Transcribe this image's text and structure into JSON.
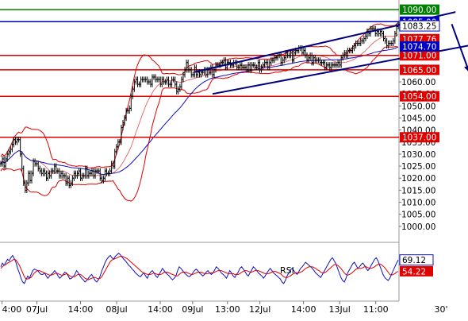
{
  "chart_data": [
    {
      "type": "candlestick",
      "panel": "price",
      "xlabel": "",
      "ylabel": "",
      "ylim": [
        995,
        1094
      ],
      "y_ticks": [
        1000,
        1005,
        1010,
        1015,
        1020,
        1025,
        1030,
        1035,
        1040,
        1045,
        1050,
        1055,
        1060
      ],
      "y_tick_labels": [
        "1000.00",
        "1005.00",
        "1010.00",
        "1015.00",
        "1020.00",
        "1025.00",
        "1030.00",
        "1035.00",
        "1040.00",
        "1045.00",
        "1050.00",
        "1055.00",
        "1060.00"
      ],
      "x_tick_labels": [
        "4:00",
        "07Jul",
        "14:00",
        "08Jul",
        "14:00",
        "09Jul",
        "13:00",
        "12Jul",
        "14:00",
        "13Jul",
        "11:00",
        "30'"
      ],
      "x_tick_bars": [
        1,
        29,
        64,
        93,
        128,
        154,
        182,
        208,
        243,
        272,
        301,
        361
      ],
      "bar_count": 320,
      "series": [
        {
          "values": [
            1026,
            1028,
            1025,
            1028,
            1030,
            1031,
            1032,
            1034,
            1036,
            1035,
            1036,
            1036,
            1030,
            1024,
            1018,
            1015,
            1018,
            1022,
            1019,
            1022,
            1027,
            1026,
            1026,
            1024,
            1023,
            1022,
            1023,
            1022,
            1020,
            1022,
            1021,
            1023,
            1023,
            1025,
            1023,
            1023,
            1021,
            1022,
            1021,
            1021,
            1018,
            1020,
            1017,
            1018,
            1020,
            1022,
            1021,
            1022,
            1023,
            1020,
            1021,
            1021,
            1024,
            1021,
            1022,
            1022,
            1023,
            1021,
            1023,
            1023,
            1023,
            1020,
            1019,
            1020,
            1023,
            1022,
            1022,
            1023,
            1026,
            1025,
            1031,
            1033,
            1035,
            1035,
            1041,
            1043,
            1045,
            1048,
            1048,
            1049,
            1054,
            1057,
            1060,
            1061,
            1059,
            1059,
            1061,
            1061,
            1061,
            1061,
            1060,
            1060,
            1059,
            1062,
            1062,
            1061,
            1061,
            1061,
            1059,
            1061,
            1060,
            1060,
            1061,
            1059,
            1059,
            1061,
            1061,
            1059,
            1056,
            1057,
            1058,
            1061,
            1063,
            1065,
            1068,
            1065,
            1065,
            1063,
            1063,
            1066,
            1063,
            1064,
            1063,
            1064,
            1064,
            1065,
            1063,
            1065,
            1064,
            1066,
            1063,
            1065,
            1067,
            1067,
            1067,
            1068,
            1068,
            1069,
            1066,
            1068,
            1068,
            1067,
            1067,
            1068,
            1068,
            1066,
            1066,
            1067,
            1066,
            1066,
            1066,
            1065,
            1067,
            1065,
            1067,
            1067,
            1066,
            1066,
            1068,
            1065,
            1066,
            1067,
            1068,
            1068,
            1066,
            1068,
            1069,
            1069,
            1070,
            1070,
            1071,
            1071,
            1068,
            1069,
            1070,
            1072,
            1071,
            1071,
            1072,
            1069,
            1072,
            1073,
            1073,
            1074,
            1074,
            1072,
            1073,
            1071,
            1069,
            1070,
            1071,
            1068,
            1070,
            1069,
            1069,
            1069,
            1068,
            1068,
            1068,
            1066,
            1067,
            1067,
            1066,
            1067,
            1067,
            1067,
            1067,
            1068,
            1067,
            1070,
            1071,
            1072,
            1071,
            1073,
            1073,
            1073,
            1074,
            1075,
            1076,
            1076,
            1076,
            1077,
            1077,
            1078,
            1079,
            1081,
            1080,
            1082,
            1082,
            1082,
            1080,
            1081,
            1080,
            1081,
            1080,
            1078,
            1077,
            1075,
            1076,
            1076,
            1076,
            1077,
            1080,
            1083,
            1084
          ]
        }
      ],
      "indicators": [
        {
          "type": "bollinger-upper",
          "color": "#e00000"
        },
        {
          "type": "bollinger-lower",
          "color": "#e00000"
        },
        {
          "type": "moving-average",
          "color": "#1010c0"
        }
      ],
      "trend_channel": {
        "upper": [
          [
            155,
            1064
          ],
          [
            365,
            1089
          ]
        ],
        "lower": [
          [
            170,
            1055
          ],
          [
            385,
            1076
          ]
        ],
        "color": "#000080"
      },
      "arrow": {
        "from": [
          362,
          1084
        ],
        "to": [
          376,
          1064
        ],
        "color": "#000080"
      },
      "horizontal_levels": [
        {
          "value": 1090.0,
          "label": "1090.00",
          "line_color": "#008000",
          "label_bg": "#008000"
        },
        {
          "value": 1085.0,
          "label": "1085.00",
          "line_color": "#0000c0",
          "label_bg": "#0000c0",
          "label_covered": true
        },
        {
          "value": 1071.0,
          "label": "1071.00",
          "line_color": "#e00000",
          "label_bg": "#e00000"
        },
        {
          "value": 1065.0,
          "label": "1065.00",
          "line_color": "#e00000",
          "label_bg": "#e00000"
        },
        {
          "value": 1054.0,
          "label": "1054.00",
          "line_color": "#e00000",
          "label_bg": "#e00000"
        },
        {
          "value": 1037.0,
          "label": "1037.00",
          "line_color": "#e00000",
          "label_bg": "#e00000"
        }
      ],
      "value_tags": [
        {
          "label": "1083.25",
          "value": 1083.25,
          "bg": "#ffffff",
          "fg": "#000000",
          "border": "#0000c0"
        },
        {
          "label": "1077.76",
          "value": 1077.76,
          "bg": "#e00000",
          "fg": "#ffffff"
        },
        {
          "label": "1074.70",
          "value": 1074.7,
          "bg": "#0000c0",
          "fg": "#ffffff"
        }
      ],
      "grid": false
    },
    {
      "type": "line",
      "panel": "indicator",
      "annotations": [
        "RSI"
      ],
      "ylim": [
        20,
        85
      ],
      "series": [
        {
          "color": "#1010c0",
          "values": [
            60,
            65,
            62,
            66,
            70,
            68,
            72,
            75,
            71,
            66,
            58,
            52,
            45,
            40,
            38,
            43,
            48,
            45,
            50,
            55,
            57,
            56,
            55,
            52,
            50,
            50,
            52,
            48,
            45,
            48,
            50,
            52,
            55,
            52,
            48,
            45,
            47,
            50,
            53,
            52,
            48,
            44,
            45,
            47,
            50,
            55,
            52,
            48,
            45,
            43,
            40,
            42,
            45,
            48,
            50,
            46,
            42,
            40,
            43,
            48,
            55,
            60,
            66,
            70,
            73,
            75,
            72,
            70,
            74,
            76,
            78,
            76,
            73,
            70,
            68,
            65,
            62,
            60,
            57,
            55,
            52,
            50,
            48,
            47,
            50,
            52,
            48,
            45,
            50,
            53,
            55,
            52,
            48,
            46,
            50,
            54,
            58,
            55,
            52,
            50,
            48,
            45,
            43,
            45,
            48,
            55,
            60,
            58,
            55,
            52,
            50,
            48,
            47,
            49,
            52,
            55,
            57,
            55,
            52,
            50,
            48,
            50,
            53,
            55,
            52,
            50,
            52,
            56,
            60,
            58,
            55,
            52,
            50,
            48,
            45,
            50,
            55,
            52,
            48,
            46,
            50,
            53,
            58,
            60,
            57,
            54,
            50,
            48,
            52,
            56,
            60,
            58,
            55,
            52,
            50,
            48,
            45,
            48,
            52,
            55,
            58,
            55,
            52,
            50,
            48,
            46,
            44,
            40,
            38,
            42,
            48,
            52,
            56,
            58,
            55,
            52,
            50,
            54,
            58,
            60,
            63,
            66,
            64,
            62,
            60,
            58,
            55,
            52,
            50,
            48,
            46,
            50,
            54,
            58,
            62,
            66,
            70,
            72,
            68,
            64,
            58,
            52,
            46,
            42,
            40,
            45,
            52,
            56,
            60,
            64,
            66,
            62,
            58,
            60,
            63,
            65,
            62,
            58,
            55,
            58,
            62,
            66,
            70,
            72,
            68,
            62,
            56,
            50,
            46,
            44,
            42,
            45,
            50,
            55,
            60,
            65,
            69
          ]
        },
        {
          "color": "#e00000",
          "values": [
            58,
            60,
            62,
            63,
            65,
            66,
            67,
            69,
            70,
            69,
            66,
            62,
            57,
            52,
            47,
            44,
            44,
            45,
            46,
            49,
            52,
            54,
            55,
            55,
            54,
            53,
            52,
            51,
            50,
            49,
            49,
            50,
            51,
            52,
            51,
            50,
            49,
            49,
            50,
            51,
            50,
            48,
            47,
            47,
            47,
            49,
            50,
            50,
            49,
            47,
            45,
            44,
            43,
            44,
            45,
            46,
            46,
            45,
            44,
            45,
            47,
            51,
            55,
            59,
            63,
            67,
            69,
            70,
            71,
            72,
            73,
            74,
            74,
            73,
            72,
            71,
            69,
            67,
            65,
            63,
            61,
            59,
            57,
            55,
            53,
            52,
            51,
            50,
            50,
            50,
            51,
            52,
            51,
            50,
            50,
            50,
            51,
            53,
            53,
            53,
            52,
            51,
            50,
            49,
            48,
            48,
            50,
            52,
            53,
            53,
            53,
            52,
            51,
            50,
            50,
            51,
            52,
            53,
            53,
            53,
            52,
            51,
            51,
            51,
            52,
            52,
            52,
            53,
            54,
            55,
            55,
            55,
            54,
            53,
            52,
            51,
            51,
            51,
            51,
            50,
            50,
            50,
            51,
            53,
            54,
            55,
            55,
            54,
            53,
            53,
            54,
            55,
            55,
            55,
            54,
            53,
            52,
            51,
            51,
            51,
            52,
            53,
            54,
            54,
            53,
            52,
            51,
            49,
            47,
            46,
            46,
            47,
            48,
            50,
            51,
            52,
            52,
            52,
            53,
            54,
            56,
            58,
            59,
            60,
            60,
            60,
            59,
            58,
            56,
            55,
            53,
            52,
            52,
            53,
            55,
            57,
            59,
            61,
            63,
            63,
            62,
            60,
            58,
            55,
            52,
            50,
            49,
            50,
            51,
            53,
            55,
            57,
            58,
            58,
            58,
            59,
            60,
            60,
            59,
            58,
            58,
            59,
            60,
            62,
            63,
            64,
            63,
            61,
            59,
            56,
            53,
            50,
            49,
            50,
            51,
            53,
            54
          ]
        }
      ],
      "value_tags": [
        {
          "label": "69.12",
          "value": 69.12,
          "bg": "#ffffff",
          "fg": "#000000",
          "border": "#1010c0"
        },
        {
          "label": "54.22",
          "value": 54.22,
          "bg": "#e00000",
          "fg": "#ffffff"
        }
      ]
    }
  ]
}
